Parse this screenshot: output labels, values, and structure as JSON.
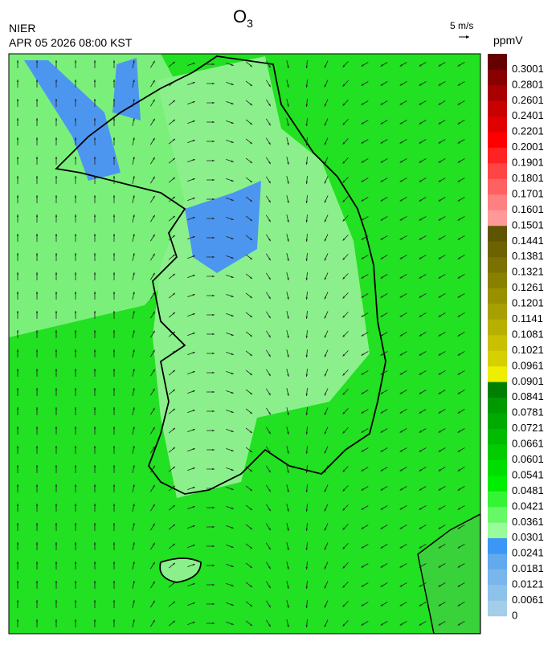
{
  "header": {
    "title": "O",
    "title_subscript": "3",
    "agency": "NIER",
    "timestamp": "APR 05 2026 08:00 KST"
  },
  "wind_legend": {
    "label": "5 m/s"
  },
  "colorbar": {
    "unit": "ppmV",
    "levels": [
      0,
      0.0061,
      0.0121,
      0.0181,
      0.0241,
      0.0301,
      0.0361,
      0.0421,
      0.0481,
      0.0541,
      0.0601,
      0.0661,
      0.0721,
      0.0781,
      0.0841,
      0.0901,
      0.0961,
      0.1021,
      0.1081,
      0.1141,
      0.1201,
      0.1261,
      0.1321,
      0.1381,
      0.1441,
      0.1501,
      0.1601,
      0.1701,
      0.1801,
      0.1901,
      0.2001,
      0.2201,
      0.2401,
      0.2601,
      0.2801,
      0.3001
    ],
    "colors": [
      "#a3cde9",
      "#8dc2ea",
      "#78b6ec",
      "#62aaee",
      "#3c96f6",
      "#99fb99",
      "#66f866",
      "#33f533",
      "#00ee00",
      "#00dd00",
      "#00cc00",
      "#00bb00",
      "#00aa00",
      "#009900",
      "#007f00",
      "#eeee00",
      "#d6d000",
      "#c8c000",
      "#b8b000",
      "#a8a000",
      "#999000",
      "#8a8000",
      "#7b7000",
      "#6d6200",
      "#5f5500",
      "#ff9999",
      "#ff8080",
      "#ff6060",
      "#ff4444",
      "#ff2222",
      "#ff0000",
      "#e00000",
      "#c80000",
      "#a80000",
      "#880000",
      "#660000"
    ]
  }
}
